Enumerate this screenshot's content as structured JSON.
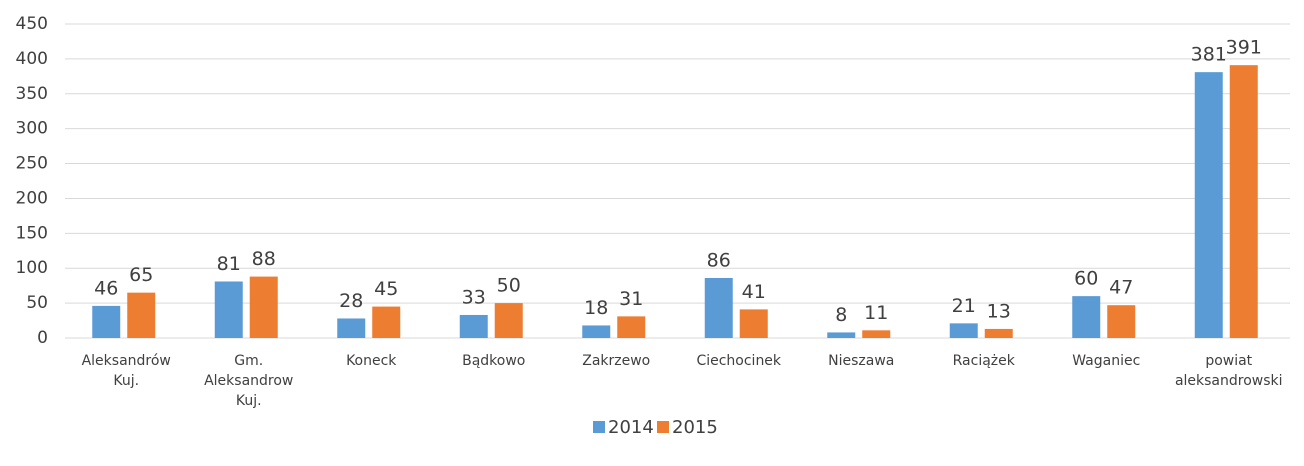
{
  "chart_data": {
    "type": "bar",
    "categories": [
      "Aleksandrów Kuj.",
      "Gm. Aleksandrow Kuj.",
      "Koneck",
      "Bądkowo",
      "Zakrzewo",
      "Ciechocinek",
      "Nieszawa",
      "Raciążek",
      "Waganiec",
      "powiat aleksandrowski"
    ],
    "series": [
      {
        "name": "2014",
        "color": "#5b9bd5",
        "values": [
          46,
          81,
          28,
          33,
          18,
          86,
          8,
          21,
          60,
          381
        ]
      },
      {
        "name": "2015",
        "color": "#ed7d31",
        "values": [
          65,
          88,
          45,
          50,
          31,
          41,
          11,
          13,
          47,
          391
        ]
      }
    ],
    "ylim": [
      0,
      450
    ],
    "yticks": [
      0,
      50,
      100,
      150,
      200,
      250,
      300,
      350,
      400,
      450
    ],
    "grid": true,
    "legend": "bottom"
  }
}
